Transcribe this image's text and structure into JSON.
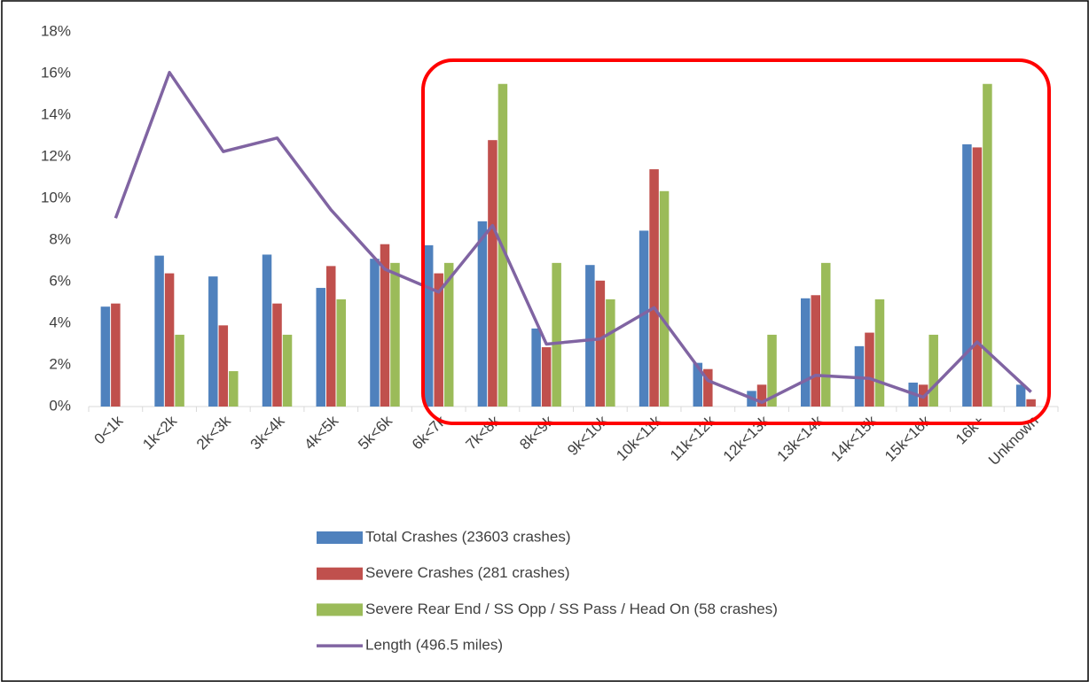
{
  "chart_data": {
    "type": "bar",
    "categories": [
      "0<1k",
      "1k<2k",
      "2k<3k",
      "3k<4k",
      "4k<5k",
      "5k<6k",
      "6k<7k",
      "7k<8k",
      "8k<9k",
      "9k<10k",
      "10k<11k",
      "11k<12k",
      "12k<13k",
      "13k<14k",
      "14k<15k",
      "15k<16k",
      "16k+",
      "Unknown"
    ],
    "series": [
      {
        "name": "Total Crashes (23603 crashes)",
        "type": "bar",
        "color": "#4f81bd",
        "values": [
          4.8,
          7.25,
          6.25,
          7.3,
          5.7,
          7.1,
          7.75,
          8.9,
          3.75,
          6.8,
          8.45,
          2.1,
          0.75,
          5.2,
          2.9,
          1.15,
          12.6,
          1.05
        ]
      },
      {
        "name": "Severe Crashes (281 crashes)",
        "type": "bar",
        "color": "#c0504d",
        "values": [
          4.95,
          6.4,
          3.9,
          4.95,
          6.75,
          7.8,
          6.4,
          12.8,
          2.85,
          6.05,
          11.4,
          1.8,
          1.05,
          5.35,
          3.55,
          1.05,
          12.45,
          0.35
        ]
      },
      {
        "name": "Severe Rear End / SS Opp / SS Pass / Head On (58 crashes)",
        "type": "bar",
        "color": "#9bbb59",
        "values": [
          0,
          3.45,
          1.7,
          3.45,
          5.15,
          6.9,
          6.9,
          15.5,
          6.9,
          5.15,
          10.35,
          0,
          3.45,
          6.9,
          5.15,
          3.45,
          15.5,
          0
        ]
      },
      {
        "name": "Length (496.5 miles)",
        "type": "line",
        "color": "#8064a2",
        "values": [
          9.05,
          16.05,
          12.25,
          12.9,
          9.45,
          6.6,
          5.5,
          8.7,
          3.0,
          3.25,
          4.75,
          1.25,
          0.2,
          1.5,
          1.35,
          0.45,
          3.1,
          0.7
        ]
      }
    ],
    "ylim": [
      0,
      18
    ],
    "yticks": [
      {
        "value": 0,
        "label": "0%"
      },
      {
        "value": 2,
        "label": "2%"
      },
      {
        "value": 4,
        "label": "4%"
      },
      {
        "value": 6,
        "label": "6%"
      },
      {
        "value": 8,
        "label": "8%"
      },
      {
        "value": 10,
        "label": "10%"
      },
      {
        "value": 12,
        "label": "12%"
      },
      {
        "value": 14,
        "label": "14%"
      },
      {
        "value": 16,
        "label": "16%"
      },
      {
        "value": 18,
        "label": "18%"
      }
    ],
    "grid": false,
    "legend": "bottom"
  }
}
